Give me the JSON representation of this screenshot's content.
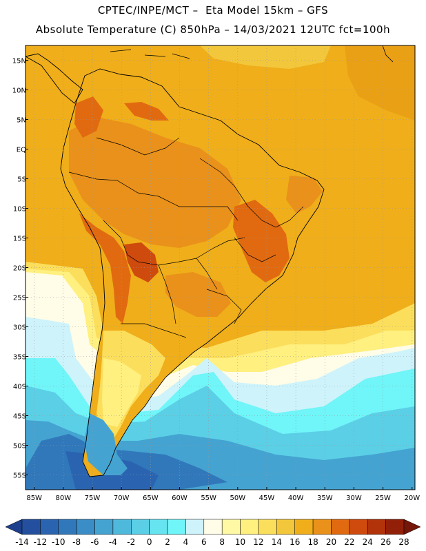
{
  "header": {
    "line1": "CPTEC/INPE/MCT –  Eta Model 15km – GFS",
    "line2": "Absolute Temperature (C) 850hPa – 14/03/2021 12UTC fct=100h"
  },
  "axes": {
    "lat_labels": [
      "15N",
      "10N",
      "5N",
      "EQ",
      "5S",
      "10S",
      "15S",
      "20S",
      "25S",
      "30S",
      "35S",
      "40S",
      "45S",
      "50S",
      "55S"
    ],
    "lon_labels": [
      "85W",
      "80W",
      "75W",
      "70W",
      "65W",
      "60W",
      "55W",
      "50W",
      "45W",
      "40W",
      "35W",
      "30W",
      "25W",
      "20W"
    ],
    "lat_values": [
      15,
      10,
      5,
      0,
      -5,
      -10,
      -15,
      -20,
      -25,
      -30,
      -35,
      -40,
      -45,
      -50,
      -55
    ],
    "lon_values": [
      -85,
      -80,
      -75,
      -70,
      -65,
      -60,
      -55,
      -50,
      -45,
      -40,
      -35,
      -30,
      -25,
      -20
    ]
  },
  "colorbar": {
    "labels": [
      "-14",
      "-12",
      "-10",
      "-8",
      "-6",
      "-4",
      "-2",
      "0",
      "2",
      "4",
      "6",
      "8",
      "10",
      "12",
      "14",
      "16",
      "18",
      "20",
      "22",
      "24",
      "26",
      "28"
    ],
    "colors": [
      "#1e3f8c",
      "#234f9e",
      "#2a64b0",
      "#3178bb",
      "#3a8dc6",
      "#44a3d1",
      "#4fb9dc",
      "#5bcfe6",
      "#66e4f0",
      "#70f5f8",
      "#cef3fb",
      "#fffce8",
      "#fff9a6",
      "#fff07f",
      "#fbde5c",
      "#f3c73b",
      "#efae1a",
      "#e9911a",
      "#e16a10",
      "#cf4a0d",
      "#b2320a",
      "#922008",
      "#741608"
    ]
  },
  "map_colors": {
    "ocean_warm": "#eaa014",
    "ocean_mid": "#efae1a",
    "ocean_cool": "#f3c73b",
    "land_base": "#efae1a",
    "land_warm": "#e9911a",
    "land_hot": "#e16a10",
    "land_very_hot": "#cf4a0d",
    "yellow": "#fbde5c",
    "light_yellow": "#fff07f",
    "pale": "#fffce8",
    "pale_blue": "#cef3fb",
    "cyan": "#70f5f8",
    "aqua": "#5bcfe6",
    "blue1": "#44a3d1",
    "blue2": "#3178bb",
    "blue3": "#2a64b0"
  }
}
